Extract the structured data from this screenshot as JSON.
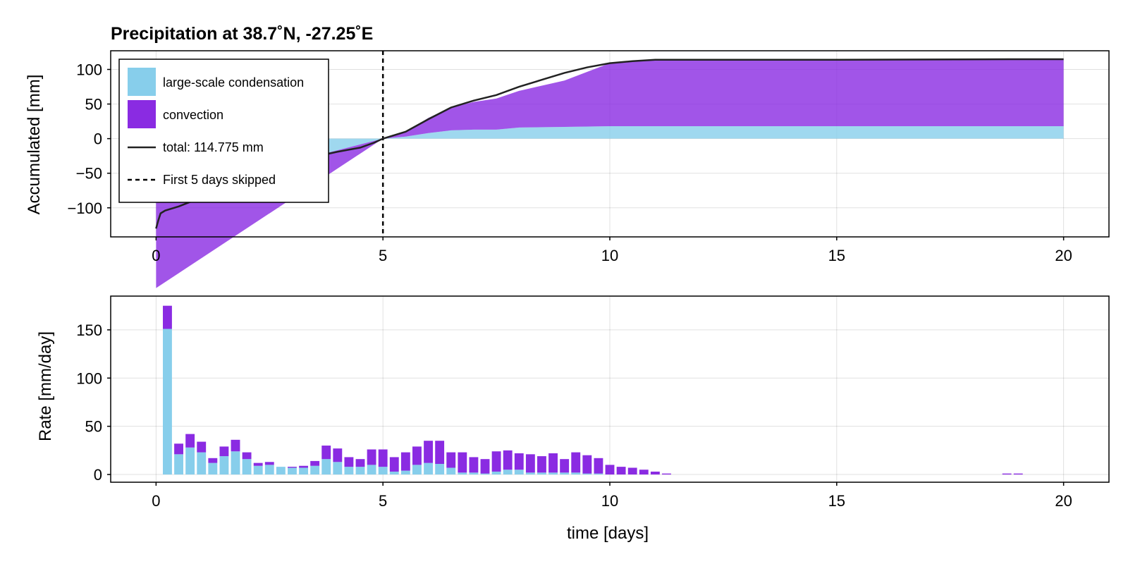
{
  "colors": {
    "large_scale": "#87ceeb",
    "convection": "#8a2be2",
    "total": "#222222"
  },
  "chart_data": [
    {
      "type": "area",
      "title": "Precipitation at 38.7˚N, -27.25˚E",
      "xlabel": "",
      "ylabel": "Accumulated [mm]",
      "xlim": [
        -1,
        21
      ],
      "ylim": [
        -142,
        127
      ],
      "xticks": [
        0,
        5,
        10,
        15,
        20
      ],
      "yticks": [
        -100,
        -50,
        0,
        50,
        100
      ],
      "xtick_labels": [
        "0",
        "5",
        "10",
        "15",
        "20"
      ],
      "ytick_labels": [
        "−100",
        "−50",
        "0",
        "50",
        "100"
      ],
      "grid": true,
      "legend_position": "top-left",
      "legend": {
        "large_scale": "large-scale condensation",
        "convection": "convection",
        "total": "total: 114.775 mm",
        "skip": "First 5 days skipped"
      },
      "skip_line_x": 5,
      "series": [
        {
          "name": "large-scale condensation",
          "x": [
            0,
            5,
            5.5,
            6,
            6.5,
            7,
            7.5,
            8,
            9,
            10,
            11,
            15,
            20
          ],
          "values": [
            -84,
            0,
            3,
            8,
            12,
            13,
            13,
            16,
            17,
            18,
            18,
            18,
            18
          ]
        },
        {
          "name": "convection",
          "x": [
            0,
            5,
            5.5,
            6,
            6.5,
            7,
            7.5,
            8,
            9,
            10,
            11,
            15,
            20
          ],
          "values": [
            -132,
            0,
            6,
            22,
            33,
            40,
            45,
            53,
            67,
            91,
            96,
            96,
            97
          ]
        },
        {
          "name": "total: 114.775 mm",
          "x": [
            0,
            0.05,
            0.1,
            0.2,
            0.5,
            1,
            1.5,
            2,
            2.5,
            3,
            3.5,
            4,
            4.5,
            4.8,
            5,
            5.5,
            6,
            6.5,
            7,
            7.5,
            8,
            8.5,
            9,
            9.5,
            10,
            10.5,
            11,
            15,
            18.8,
            20
          ],
          "values": [
            -130,
            -118,
            -108,
            -104,
            -98,
            -85,
            -70,
            -56,
            -43,
            -33,
            -26,
            -19,
            -13,
            -6,
            0,
            10,
            28,
            45,
            55,
            63,
            75,
            85,
            95,
            103,
            109,
            112,
            114,
            114,
            114.775,
            114.775
          ]
        }
      ]
    },
    {
      "type": "bar",
      "title": "",
      "xlabel": "time [days]",
      "ylabel": "Rate [mm/day]",
      "xlim": [
        -1,
        21
      ],
      "ylim": [
        -8,
        185
      ],
      "xticks": [
        0,
        5,
        10,
        15,
        20
      ],
      "yticks": [
        0,
        50,
        100,
        150
      ],
      "xtick_labels": [
        "0",
        "5",
        "10",
        "15",
        "20"
      ],
      "ytick_labels": [
        "0",
        "50",
        "100",
        "150"
      ],
      "grid": true,
      "stacked": true,
      "x": [
        0.25,
        0.5,
        0.75,
        1.0,
        1.25,
        1.5,
        1.75,
        2.0,
        2.25,
        2.5,
        2.75,
        3.0,
        3.25,
        3.5,
        3.75,
        4.0,
        4.25,
        4.5,
        4.75,
        5.0,
        5.25,
        5.5,
        5.75,
        6.0,
        6.25,
        6.5,
        6.75,
        7.0,
        7.25,
        7.5,
        7.75,
        8.0,
        8.25,
        8.5,
        8.75,
        9.0,
        9.25,
        9.5,
        9.75,
        10.0,
        10.25,
        10.5,
        10.75,
        11.0,
        11.25,
        18.75,
        19.0
      ],
      "series": [
        {
          "name": "large-scale condensation",
          "values": [
            151,
            21,
            28,
            23,
            12,
            19,
            24,
            16,
            9,
            10,
            8,
            7,
            7,
            9,
            16,
            13,
            8,
            8,
            10,
            8,
            3,
            4,
            10,
            12,
            11,
            7,
            2,
            2,
            1,
            3,
            5,
            5,
            2,
            2,
            2,
            2,
            2,
            1,
            1,
            0,
            0,
            0,
            0,
            0,
            0,
            0,
            0
          ]
        },
        {
          "name": "convection",
          "values": [
            24,
            11,
            14,
            11,
            5,
            10,
            12,
            7,
            3,
            3,
            0,
            1,
            2,
            5,
            14,
            14,
            10,
            8,
            16,
            18,
            15,
            19,
            19,
            23,
            24,
            16,
            21,
            16,
            15,
            21,
            20,
            17,
            19,
            17,
            20,
            14,
            21,
            19,
            16,
            10,
            8,
            7,
            5,
            3,
            1,
            1,
            1
          ]
        }
      ]
    }
  ]
}
